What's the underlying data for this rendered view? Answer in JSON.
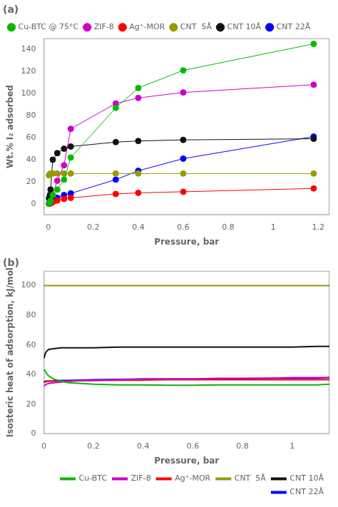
{
  "chart_data": [
    {
      "type": "scatter",
      "title": "(a)",
      "xlabel": "Pressure, bar",
      "ylabel": "Wt.% I₂ adsorbed",
      "xlim": [
        -0.02,
        1.25
      ],
      "ylim": [
        -10,
        150
      ],
      "xticks": [
        0,
        0.2,
        0.4,
        0.6,
        0.8,
        1,
        1.2
      ],
      "yticks": [
        0,
        20,
        40,
        60,
        80,
        100,
        120,
        140
      ],
      "grid": false,
      "legend": "upper left",
      "x": [
        0.003,
        0.007,
        0.01,
        0.02,
        0.04,
        0.07,
        0.1,
        0.3,
        0.4,
        0.6,
        1.18
      ],
      "series": [
        {
          "name": "Cu-BTC @ 75°C",
          "color": "#00bb00",
          "marker": "circle",
          "line_style": "solid",
          "values": [
            0.5,
            1.5,
            3.0,
            8.0,
            13.0,
            22.0,
            42.0,
            87.0,
            105.0,
            121.0,
            145.0
          ]
        },
        {
          "name": "ZIF-8",
          "color": "#cc00cc",
          "marker": "circle",
          "line_style": "solid",
          "values": [
            0.3,
            1.0,
            2.0,
            8.0,
            21.0,
            35.0,
            68.0,
            91.0,
            96.0,
            101.0,
            108.0
          ]
        },
        {
          "name": "Ag⁺-MOR",
          "color": "#ff0000",
          "marker": "circle",
          "line_style": "solid",
          "values": [
            0.1,
            0.3,
            0.5,
            1.5,
            3.0,
            4.5,
            5.5,
            9.0,
            10.0,
            11.0,
            14.0
          ]
        },
        {
          "name": "CNT  5Å",
          "color": "#999900",
          "marker": "circle",
          "line_style": "solid",
          "values": [
            26.0,
            27.0,
            27.5,
            27.5,
            27.5,
            27.5,
            27.5,
            27.5,
            27.5,
            27.5,
            27.5
          ]
        },
        {
          "name": "CNT 10Å",
          "color": "#111111",
          "marker": "circle",
          "line_style": "solid",
          "values": [
            5.0,
            8.0,
            13.0,
            40.0,
            46.0,
            50.0,
            52.0,
            56.0,
            57.0,
            58.0,
            59.0
          ]
        },
        {
          "name": "CNT 22Å",
          "color": "#0000ff",
          "marker": "circle",
          "line_style": "solid",
          "values": [
            0.2,
            0.5,
            1.0,
            3.0,
            5.5,
            8.0,
            9.5,
            22.0,
            30.0,
            41.0,
            61.0
          ]
        }
      ]
    },
    {
      "type": "line",
      "title": "(b)",
      "xlabel": "Pressure, bar",
      "ylabel": "Isosteric heat of adsorption, kJ/mol",
      "xlim": [
        0,
        1.15
      ],
      "ylim": [
        0,
        110
      ],
      "xticks": [
        0,
        0.2,
        0.4,
        0.6,
        0.8,
        1
      ],
      "yticks": [
        0,
        20,
        40,
        60,
        80,
        100
      ],
      "grid": false,
      "legend": "lower right",
      "x": [
        0.001,
        0.003,
        0.007,
        0.01,
        0.02,
        0.04,
        0.07,
        0.1,
        0.15,
        0.2,
        0.3,
        0.4,
        0.5,
        0.6,
        0.7,
        0.8,
        0.9,
        1.0,
        1.1,
        1.15
      ],
      "series": [
        {
          "name": "Cu-BTC",
          "color": "#00bb00",
          "line_style": "solid",
          "values": [
            43.5,
            43.0,
            42.0,
            41.0,
            39.0,
            37.0,
            35.5,
            34.5,
            34.0,
            33.5,
            33.0,
            33.0,
            32.8,
            32.8,
            33.0,
            33.0,
            33.0,
            33.0,
            33.0,
            33.5
          ]
        },
        {
          "name": "ZIF-8",
          "color": "#cc00cc",
          "line_style": "solid",
          "values": [
            32.5,
            32.5,
            33.0,
            33.5,
            34.0,
            34.5,
            35.0,
            35.5,
            36.0,
            36.0,
            36.5,
            37.0,
            37.0,
            37.0,
            37.5,
            37.5,
            37.5,
            38.0,
            38.0,
            38.0
          ]
        },
        {
          "name": "Ag⁺-MOR",
          "color": "#ff0000",
          "line_style": "solid",
          "values": [
            34.5,
            34.8,
            35.0,
            35.2,
            35.5,
            35.5,
            35.5,
            35.5,
            35.8,
            36.0,
            36.2,
            36.3,
            36.5,
            36.5,
            36.5,
            36.5,
            36.5,
            36.5,
            36.5,
            36.5
          ]
        },
        {
          "name": "CNT  5Å",
          "color": "#999900",
          "line_style": "solid",
          "values": [
            100.0,
            100.0,
            100.0,
            100.0,
            100.0,
            100.0,
            100.0,
            100.0,
            100.0,
            100.0,
            100.0,
            100.0,
            100.0,
            100.0,
            100.0,
            100.0,
            100.0,
            100.0,
            100.0,
            100.0
          ]
        },
        {
          "name": "CNT 10Å",
          "color": "#111111",
          "line_style": "solid",
          "values": [
            51.0,
            52.5,
            54.5,
            55.5,
            57.0,
            57.5,
            58.0,
            58.0,
            58.0,
            58.0,
            58.5,
            58.5,
            58.5,
            58.5,
            58.5,
            58.5,
            58.5,
            58.5,
            59.0,
            59.0
          ]
        },
        {
          "name": "CNT 22Å",
          "color": "#0000ff",
          "line_style": "solid",
          "values": [
            35.0,
            35.2,
            35.5,
            35.5,
            35.5,
            35.8,
            36.0,
            36.0,
            36.3,
            36.5,
            36.8,
            37.0,
            37.0,
            37.0,
            37.2,
            37.2,
            37.5,
            37.5,
            37.5,
            38.0
          ]
        }
      ]
    }
  ]
}
